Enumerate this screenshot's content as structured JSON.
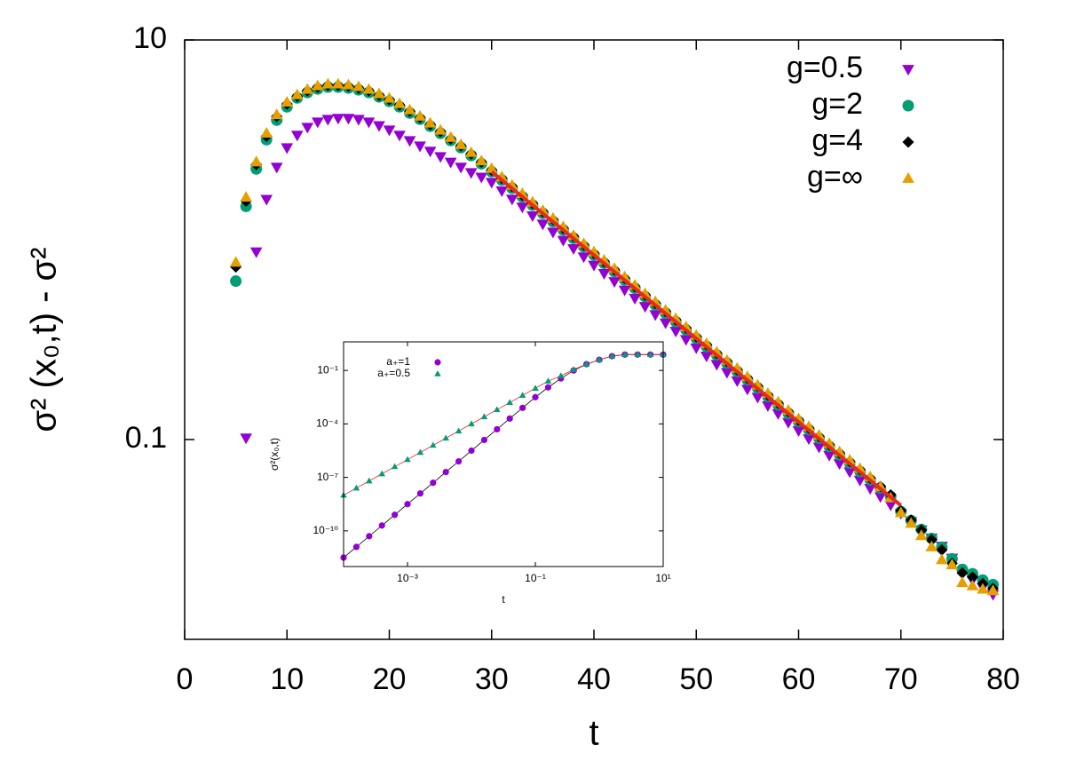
{
  "chart_data": [
    {
      "type": "scatter",
      "xlabel": "t",
      "ylabel": "σ² (x₀,t) - σ²",
      "xlim": [
        0,
        80
      ],
      "xticks": [
        0,
        10,
        20,
        30,
        40,
        50,
        60,
        70,
        80
      ],
      "ylim": [
        0.01,
        10
      ],
      "ylog": true,
      "yticks": [
        0.1,
        10
      ],
      "legend": "upper-right",
      "x": [
        5,
        6,
        7,
        8,
        9,
        10,
        11,
        12,
        13,
        14,
        15,
        16,
        17,
        18,
        19,
        20,
        21,
        22,
        23,
        24,
        25,
        26,
        27,
        28,
        29,
        30,
        31,
        32,
        33,
        34,
        35,
        36,
        37,
        38,
        39,
        40,
        41,
        42,
        43,
        44,
        45,
        46,
        47,
        48,
        49,
        50,
        51,
        52,
        53,
        54,
        55,
        56,
        57,
        58,
        59,
        60,
        61,
        62,
        63,
        64,
        65,
        66,
        67,
        68,
        69,
        70,
        71,
        72,
        73,
        74,
        75,
        76,
        77,
        78,
        79
      ],
      "series": [
        {
          "name": "g=0.5",
          "color": "#9400d3",
          "marker": "triangle-down",
          "values": [
            null,
            0.102,
            0.871,
            1.595,
            2.31,
            2.89,
            3.34,
            3.66,
            3.89,
            4.01,
            4.06,
            4.06,
            4.01,
            3.89,
            3.73,
            3.55,
            3.34,
            3.14,
            2.95,
            2.78,
            2.61,
            2.45,
            2.31,
            2.17,
            2.06,
            1.94,
            1.76,
            1.6,
            1.46,
            1.32,
            1.2,
            1.094,
            0.995,
            0.904,
            0.822,
            0.747,
            0.679,
            0.618,
            0.561,
            0.51,
            0.464,
            0.422,
            0.384,
            0.349,
            0.317,
            0.288,
            0.262,
            0.238,
            0.217,
            0.197,
            0.179,
            0.163,
            0.148,
            0.135,
            0.122,
            0.111,
            0.101,
            0.0918,
            0.0835,
            0.0759,
            0.069,
            0.0627,
            0.057,
            0.0518,
            0.0471,
            0.0428,
            0.0389,
            0.0354,
            0.0322,
            0.0293,
            0.0255,
            0.0214,
            0.0198,
            0.0182,
            0.0168
          ]
        },
        {
          "name": "g=2",
          "color": "#009e73",
          "marker": "circle",
          "values": [
            0.621,
            1.469,
            2.261,
            3.17,
            3.97,
            4.63,
            5.13,
            5.46,
            5.69,
            5.81,
            5.81,
            5.75,
            5.63,
            5.46,
            5.19,
            4.93,
            4.63,
            4.31,
            4.01,
            3.7,
            3.41,
            3.14,
            2.89,
            2.64,
            2.4,
            2.19,
            1.99,
            1.81,
            1.64,
            1.49,
            1.356,
            1.232,
            1.119,
            1.017,
            0.924,
            0.839,
            0.762,
            0.693,
            0.629,
            0.572,
            0.519,
            0.472,
            0.429,
            0.389,
            0.354,
            0.321,
            0.292,
            0.265,
            0.241,
            0.219,
            0.199,
            0.181,
            0.164,
            0.149,
            0.135,
            0.123,
            0.112,
            0.1015,
            0.0922,
            0.0838,
            0.0761,
            0.0692,
            0.0628,
            0.0571,
            0.0518,
            0.0436,
            0.0393,
            0.0355,
            0.032,
            0.0289,
            0.0253,
            0.0224,
            0.0213,
            0.0198,
            0.0188
          ]
        },
        {
          "name": "g=4",
          "color": "#000000",
          "marker": "diamond",
          "values": [
            0.731,
            1.56,
            2.38,
            3.3,
            4.14,
            4.78,
            5.23,
            5.57,
            5.8,
            5.93,
            5.93,
            5.87,
            5.74,
            5.57,
            5.29,
            5.03,
            4.72,
            4.4,
            4.09,
            3.77,
            3.48,
            3.2,
            2.95,
            2.69,
            2.45,
            2.23,
            2.03,
            1.85,
            1.67,
            1.52,
            1.38,
            1.26,
            1.14,
            1.04,
            0.942,
            0.856,
            0.777,
            0.707,
            0.642,
            0.583,
            0.529,
            0.481,
            0.438,
            0.397,
            0.361,
            0.327,
            0.298,
            0.27,
            0.246,
            0.223,
            0.203,
            0.185,
            0.167,
            0.152,
            0.138,
            0.125,
            0.114,
            0.1035,
            0.094,
            0.0855,
            0.0776,
            0.0706,
            0.0641,
            0.0582,
            0.0528,
            0.044,
            0.0395,
            0.0352,
            0.0315,
            0.028,
            0.024,
            0.0215,
            0.0205,
            0.019,
            0.018
          ]
        },
        {
          "name": "g=∞",
          "color": "#e69f00",
          "marker": "triangle-up",
          "values": [
            0.77,
            1.63,
            2.45,
            3.41,
            4.22,
            4.88,
            5.31,
            5.65,
            5.89,
            6.01,
            6.01,
            5.95,
            5.83,
            5.65,
            5.37,
            5.1,
            4.79,
            4.46,
            4.15,
            3.83,
            3.53,
            3.25,
            2.99,
            2.73,
            2.48,
            2.27,
            2.06,
            1.87,
            1.7,
            1.54,
            1.4,
            1.28,
            1.16,
            1.05,
            0.956,
            0.868,
            0.789,
            0.717,
            0.651,
            0.592,
            0.537,
            0.489,
            0.444,
            0.403,
            0.366,
            0.332,
            0.302,
            0.274,
            0.249,
            0.227,
            0.206,
            0.187,
            0.17,
            0.154,
            0.14,
            0.127,
            0.116,
            0.105,
            0.0954,
            0.0867,
            0.0788,
            0.0716,
            0.065,
            0.058,
            0.051,
            0.043,
            0.038,
            0.033,
            0.029,
            0.025,
            0.0236,
            0.0192,
            0.0185,
            0.0178,
            0.0175
          ]
        }
      ],
      "fit": {
        "x": [
          30,
          70
        ],
        "values": [
          2.19,
          0.0468
        ],
        "color": "#e8291c"
      }
    },
    {
      "type": "scatter",
      "xlabel": "t",
      "ylabel": "σ²(x₀,t)",
      "xlim": [
        0.0001,
        10
      ],
      "xlog": true,
      "xticks": [
        {
          "value": 0.001,
          "label": "10⁻³"
        },
        {
          "value": 0.1,
          "label": "10⁻¹"
        },
        {
          "value": 10,
          "label": "10¹"
        }
      ],
      "ylim": [
        1e-12,
        4
      ],
      "ylog": true,
      "yticks": [
        {
          "value": 1e-10,
          "label": "10⁻¹⁰"
        },
        {
          "value": 1e-07,
          "label": "10⁻⁷"
        },
        {
          "value": 0.0001,
          "label": "10⁻⁴"
        },
        {
          "value": 0.1,
          "label": "10⁻¹"
        }
      ],
      "legend": "upper-left",
      "x": [
        0.0001,
        0.0001585,
        0.0002512,
        0.0003981,
        0.000631,
        0.001,
        0.001585,
        0.002512,
        0.003981,
        0.00631,
        0.01,
        0.01585,
        0.02512,
        0.03981,
        0.0631,
        0.1,
        0.1585,
        0.2512,
        0.3981,
        0.631,
        1,
        1.585,
        2.512,
        3.981,
        6.31,
        10
      ],
      "series": [
        {
          "name": "a₊=1",
          "color": "#9400d3",
          "marker": "circle",
          "line_color": "#000000",
          "values": [
            3.16e-12,
            1.26e-11,
            5.01e-11,
            2e-10,
            7.94e-10,
            3.16e-09,
            1.26e-08,
            5.01e-08,
            2e-07,
            7.94e-07,
            3.16e-06,
            1.26e-05,
            5.01e-05,
            0.0002,
            0.000794,
            0.00316,
            0.0112,
            0.0355,
            0.1,
            0.224,
            0.398,
            0.631,
            0.776,
            0.776,
            0.776,
            0.776
          ]
        },
        {
          "name": "a₊=0.5",
          "color": "#009e73",
          "marker": "triangle-up",
          "line_color": "#e8291c",
          "values": [
            1e-08,
            2.51e-08,
            6.31e-08,
            1.58e-07,
            3.98e-07,
            1e-06,
            2.51e-06,
            6.31e-06,
            1.58e-05,
            3.98e-05,
            0.0001,
            0.000251,
            0.000631,
            0.00158,
            0.00398,
            0.01,
            0.0251,
            0.0501,
            0.112,
            0.224,
            0.398,
            0.631,
            0.776,
            0.776,
            0.776,
            0.776
          ]
        }
      ]
    }
  ]
}
